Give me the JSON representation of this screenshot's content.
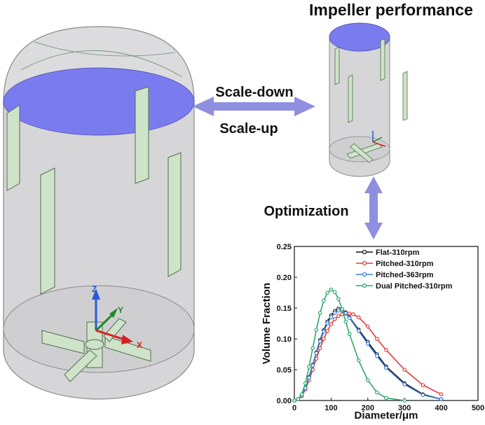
{
  "header": {
    "title": "Impeller performance"
  },
  "arrows": {
    "scale_down": "Scale-down",
    "scale_up": "Scale-up",
    "optimization": "Optimization"
  },
  "axes_triad": {
    "z": "Z",
    "y": "Y",
    "x": "X"
  },
  "colors": {
    "liquid": "#7b7bf0",
    "tank": "#d4d4d6",
    "baffle": "#cfe3c8",
    "arrow": "#8f8fe0"
  },
  "chart_data": {
    "type": "line",
    "xlabel": "Diameter/μm",
    "ylabel": "Volume Fraction",
    "xlim": [
      0,
      500
    ],
    "ylim": [
      0,
      0.25
    ],
    "xticks": [
      "0",
      "100",
      "200",
      "300",
      "400",
      "500"
    ],
    "yticks": [
      "0.00",
      "0.05",
      "0.10",
      "0.15",
      "0.20",
      "0.25"
    ],
    "legend_position": "top-right",
    "series": [
      {
        "name": "Flat-310rpm",
        "color": "#111111",
        "x": [
          0,
          10,
          20,
          30,
          40,
          50,
          60,
          70,
          80,
          90,
          100,
          110,
          120,
          130,
          140,
          150,
          175,
          200,
          225,
          250,
          300,
          350,
          400
        ],
        "y": [
          0,
          0.002,
          0.008,
          0.02,
          0.038,
          0.058,
          0.078,
          0.098,
          0.114,
          0.128,
          0.138,
          0.145,
          0.149,
          0.148,
          0.143,
          0.135,
          0.115,
          0.095,
          0.075,
          0.055,
          0.028,
          0.01,
          0.002
        ]
      },
      {
        "name": "Pitched-310rpm",
        "color": "#e03b3b",
        "x": [
          0,
          10,
          20,
          30,
          40,
          50,
          60,
          70,
          80,
          90,
          100,
          110,
          120,
          130,
          140,
          150,
          160,
          175,
          200,
          225,
          250,
          300,
          350,
          400
        ],
        "y": [
          0,
          0.002,
          0.007,
          0.018,
          0.033,
          0.05,
          0.068,
          0.085,
          0.1,
          0.113,
          0.124,
          0.132,
          0.137,
          0.14,
          0.141,
          0.141,
          0.14,
          0.135,
          0.12,
          0.1,
          0.082,
          0.05,
          0.025,
          0.01
        ]
      },
      {
        "name": "Pitched-363rpm",
        "color": "#3b7fd4",
        "x": [
          0,
          10,
          20,
          30,
          40,
          50,
          60,
          70,
          80,
          90,
          100,
          110,
          120,
          130,
          140,
          150,
          175,
          200,
          225,
          250,
          300,
          350,
          400
        ],
        "y": [
          0,
          0.002,
          0.008,
          0.02,
          0.037,
          0.057,
          0.077,
          0.096,
          0.112,
          0.125,
          0.135,
          0.142,
          0.146,
          0.146,
          0.142,
          0.134,
          0.113,
          0.092,
          0.072,
          0.053,
          0.026,
          0.009,
          0.002
        ]
      },
      {
        "name": "Dual Pitched-310rpm",
        "color": "#2fa86a",
        "x": [
          0,
          10,
          20,
          30,
          40,
          50,
          60,
          70,
          80,
          90,
          100,
          110,
          120,
          130,
          140,
          150,
          175,
          200,
          225,
          250,
          300
        ],
        "y": [
          0,
          0.002,
          0.01,
          0.028,
          0.055,
          0.085,
          0.115,
          0.142,
          0.162,
          0.175,
          0.18,
          0.176,
          0.165,
          0.148,
          0.128,
          0.108,
          0.065,
          0.033,
          0.013,
          0.004,
          0
        ]
      }
    ]
  }
}
